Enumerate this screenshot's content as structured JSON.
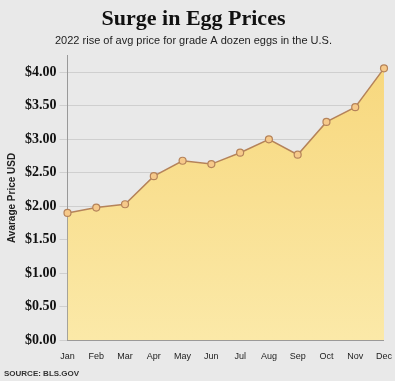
{
  "chart_data": {
    "type": "line",
    "title": "Surge in Egg Prices",
    "subtitle": "2022 rise of avg price for grade A dozen eggs in the U.S.",
    "y_label": "Avarage Price USD",
    "source": "SOURCE: BLS.GOV",
    "categories": [
      "Jan",
      "Feb",
      "Mar",
      "Apr",
      "May",
      "Jun",
      "Jul",
      "Aug",
      "Sep",
      "Oct",
      "Nov",
      "Dec"
    ],
    "values": [
      1.9,
      1.98,
      2.03,
      2.45,
      2.68,
      2.63,
      2.8,
      3.0,
      2.77,
      3.26,
      3.48,
      4.06
    ],
    "color": "#b5835a",
    "marker": "circle",
    "ylim": [
      0,
      4.25
    ],
    "yticks": [
      {
        "value": 0,
        "label": "$0.00"
      },
      {
        "value": 0.5,
        "label": "$0.50"
      },
      {
        "value": 1,
        "label": "$1.00"
      },
      {
        "value": 1.5,
        "label": "$1.50"
      },
      {
        "value": 2,
        "label": "$2.00"
      },
      {
        "value": 2.5,
        "label": "$2.50"
      },
      {
        "value": 3,
        "label": "$3.00"
      },
      {
        "value": 3.5,
        "label": "$3.50"
      },
      {
        "value": 4,
        "label": "$4.00"
      }
    ],
    "grid": true
  }
}
